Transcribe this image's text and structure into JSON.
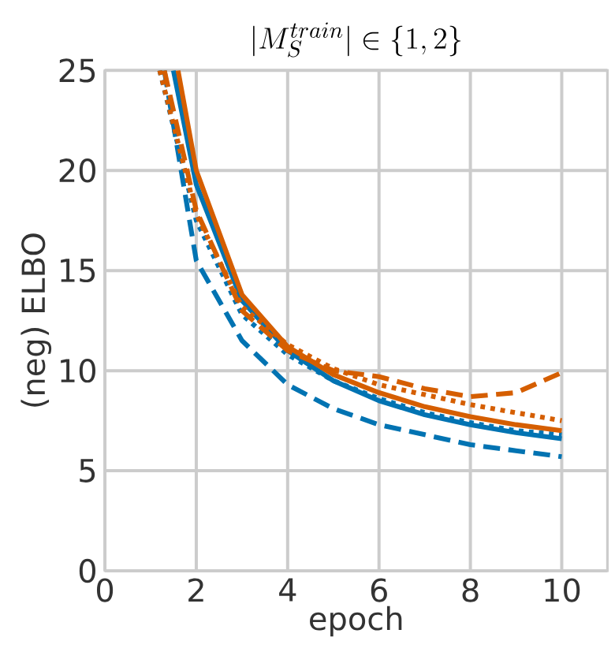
{
  "chart_data": {
    "type": "line",
    "title": "|M_S^{train}| \\in \\{1,2\\}",
    "xlabel": "epoch",
    "ylabel": "(neg) ELBO",
    "xlim": [
      0,
      11
    ],
    "ylim": [
      0,
      25
    ],
    "xticks": [
      0,
      2,
      4,
      6,
      8,
      10
    ],
    "yticks": [
      0,
      5,
      10,
      15,
      20,
      25
    ],
    "grid": true,
    "series": [
      {
        "color": "#0173b2",
        "line_style": "dashed",
        "x": [
          1.3,
          2,
          3,
          4,
          5,
          6,
          7,
          8,
          9,
          10
        ],
        "values": [
          25,
          15.5,
          11.5,
          9.3,
          8.1,
          7.3,
          6.8,
          6.3,
          6.0,
          5.7
        ]
      },
      {
        "color": "#0173b2",
        "line_style": "dotted",
        "x": [
          1.2,
          2,
          3,
          4,
          5,
          6,
          7,
          8,
          9,
          10
        ],
        "values": [
          25,
          17.5,
          12.8,
          10.8,
          9.5,
          8.6,
          7.9,
          7.4,
          7.0,
          6.8
        ]
      },
      {
        "color": "#0173b2",
        "line_style": "solid",
        "x": [
          1.5,
          2,
          3,
          4,
          5,
          6,
          7,
          8,
          9,
          10
        ],
        "values": [
          25,
          19.3,
          13.5,
          11,
          9.5,
          8.5,
          7.8,
          7.3,
          6.9,
          6.6
        ]
      },
      {
        "color": "#d55e00",
        "line_style": "dotted",
        "x": [
          1.2,
          2,
          3,
          4,
          5,
          6,
          7,
          8,
          9,
          10
        ],
        "values": [
          25,
          17.8,
          13.2,
          11.3,
          10.1,
          9.3,
          8.8,
          8.3,
          7.9,
          7.5
        ]
      },
      {
        "color": "#d55e00",
        "line_style": "dashed",
        "x": [
          1.3,
          2,
          3,
          4,
          5,
          6,
          7,
          8,
          9,
          10
        ],
        "values": [
          25,
          18,
          13,
          11,
          10,
          9.7,
          9.1,
          8.7,
          8.9,
          9.9
        ]
      },
      {
        "color": "#d55e00",
        "line_style": "solid",
        "x": [
          1.6,
          2,
          3,
          4,
          5,
          6,
          7,
          8,
          9,
          10
        ],
        "values": [
          25,
          20,
          13.8,
          11.2,
          9.8,
          8.9,
          8.2,
          7.7,
          7.3,
          7.0
        ]
      }
    ]
  }
}
